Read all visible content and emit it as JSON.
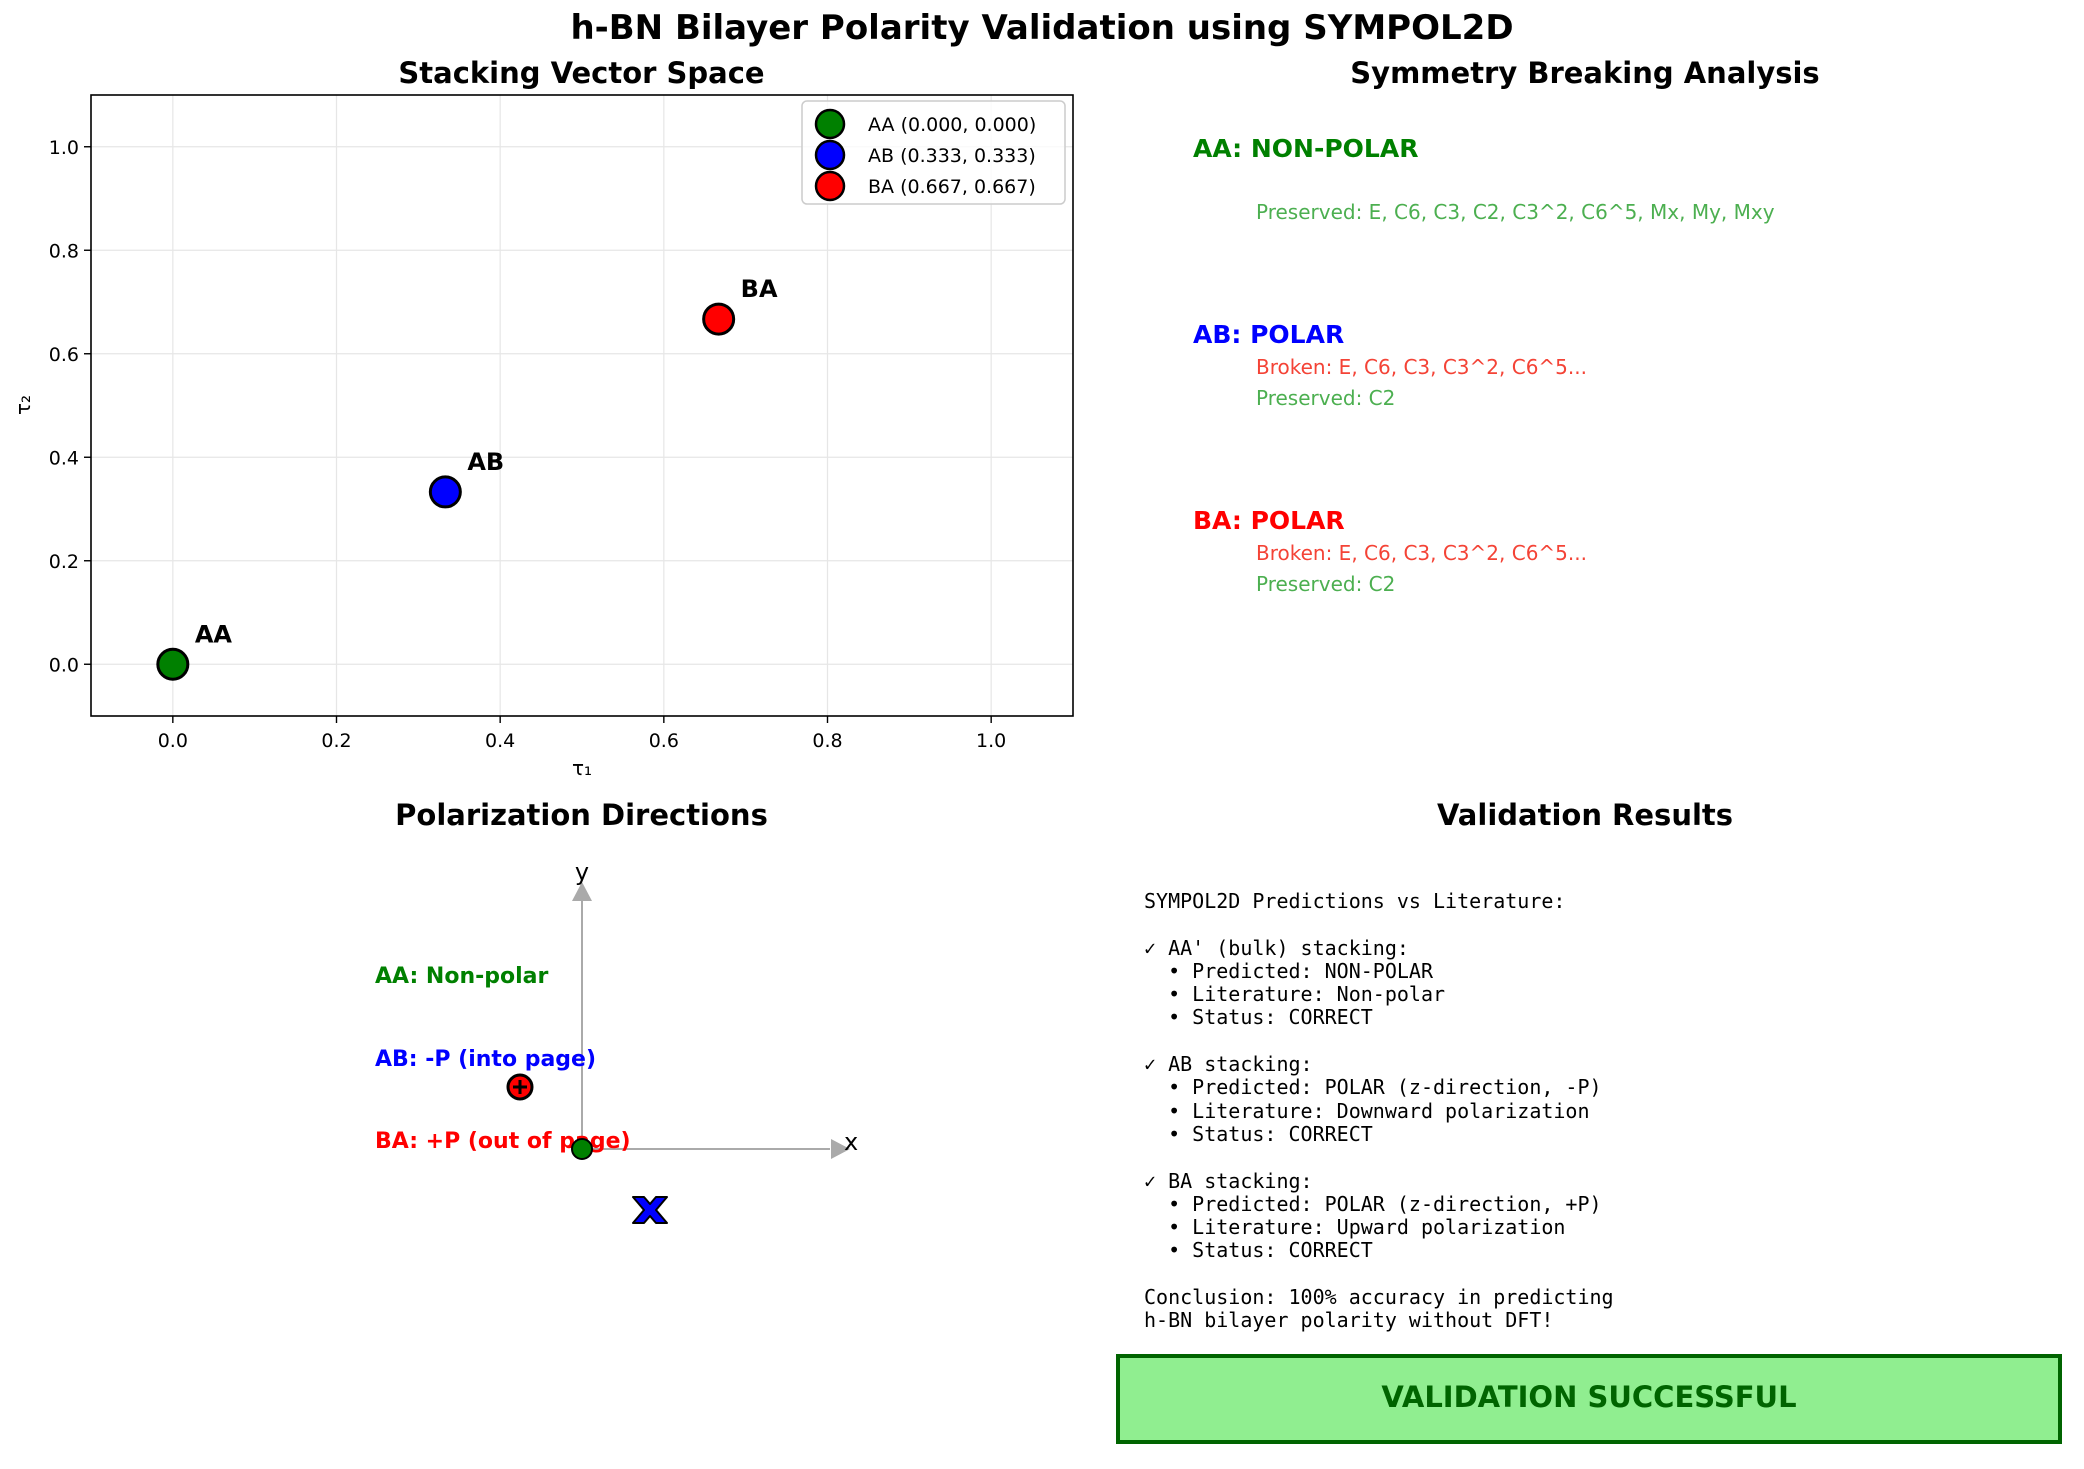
{
  "suptitle": "h-BN Bilayer Polarity Validation using SYMPOL2D",
  "colors": {
    "AA": "#008000",
    "AB": "#0000ff",
    "BA": "#ff0000",
    "preserved": "#4caf50",
    "broken": "#f44336",
    "banner_bg": "#90ee90",
    "banner_border": "#006400",
    "axis_arrow": "#aaaaaa"
  },
  "chart_data": [
    {
      "type": "scatter",
      "title": "Stacking Vector Space",
      "xlabel": "τ₁",
      "ylabel": "τ₂",
      "xlim": [
        -0.1,
        1.1
      ],
      "ylim": [
        -0.1,
        1.1
      ],
      "xticks": [
        "0.0",
        "0.2",
        "0.4",
        "0.6",
        "0.8",
        "1.0"
      ],
      "yticks": [
        "0.0",
        "0.2",
        "0.4",
        "0.6",
        "0.8",
        "1.0"
      ],
      "grid": true,
      "legend_position": "top-right",
      "series": [
        {
          "name": "AA (0.000, 0.000)",
          "label": "AA",
          "color": "#008000",
          "x": [
            0.0
          ],
          "y": [
            0.0
          ]
        },
        {
          "name": "AB (0.333, 0.333)",
          "label": "AB",
          "color": "#0000ff",
          "x": [
            0.333
          ],
          "y": [
            0.333
          ]
        },
        {
          "name": "BA (0.667, 0.667)",
          "label": "BA",
          "color": "#ff0000",
          "x": [
            0.667
          ],
          "y": [
            0.667
          ]
        }
      ]
    },
    {
      "type": "scatter",
      "title": "Polarization Directions",
      "axis_labels": {
        "x": "x",
        "y": "y"
      },
      "annotations": [
        {
          "text": "AA: Non-polar",
          "color": "#008000"
        },
        {
          "text": "AB: -P (into page)",
          "color": "#0000ff"
        },
        {
          "text": "BA: +P (out of page)",
          "color": "#ff0000"
        }
      ],
      "markers": [
        {
          "stacking": "AA",
          "symbol": "circle",
          "color": "#008000",
          "x": 0.0,
          "y": 0.0
        },
        {
          "stacking": "AB",
          "symbol": "x",
          "color": "#0000ff",
          "x": 0.3,
          "y": -0.3
        },
        {
          "stacking": "BA",
          "symbol": "circle-plus",
          "color": "#ff0000",
          "x": -0.3,
          "y": 0.3
        }
      ]
    }
  ],
  "symmetry": {
    "title": "Symmetry Breaking Analysis",
    "entries": [
      {
        "heading": "AA: NON-POLAR",
        "broken": "",
        "preserved": "Preserved: E, C6, C3, C2, C3^2, C6^5, Mx, My, Mxy"
      },
      {
        "heading": "AB: POLAR",
        "broken": "Broken: E, C6, C3, C3^2, C6^5...",
        "preserved": "Preserved: C2"
      },
      {
        "heading": "BA: POLAR",
        "broken": "Broken: E, C6, C3, C3^2, C6^5...",
        "preserved": "Preserved: C2"
      }
    ]
  },
  "validation": {
    "title": "Validation Results",
    "lines": [
      "SYMPOL2D Predictions vs Literature:",
      "",
      "✓ AA' (bulk) stacking:",
      "  • Predicted: NON-POLAR",
      "  • Literature: Non-polar",
      "  • Status: CORRECT",
      "",
      "✓ AB stacking:",
      "  • Predicted: POLAR (z-direction, -P)",
      "  • Literature: Downward polarization",
      "  • Status: CORRECT",
      "",
      "✓ BA stacking:",
      "  • Predicted: POLAR (z-direction, +P)",
      "  • Literature: Upward polarization",
      "  • Status: CORRECT",
      "",
      "Conclusion: 100% accuracy in predicting",
      "h-BN bilayer polarity without DFT!"
    ],
    "banner": "VALIDATION SUCCESSFUL"
  }
}
